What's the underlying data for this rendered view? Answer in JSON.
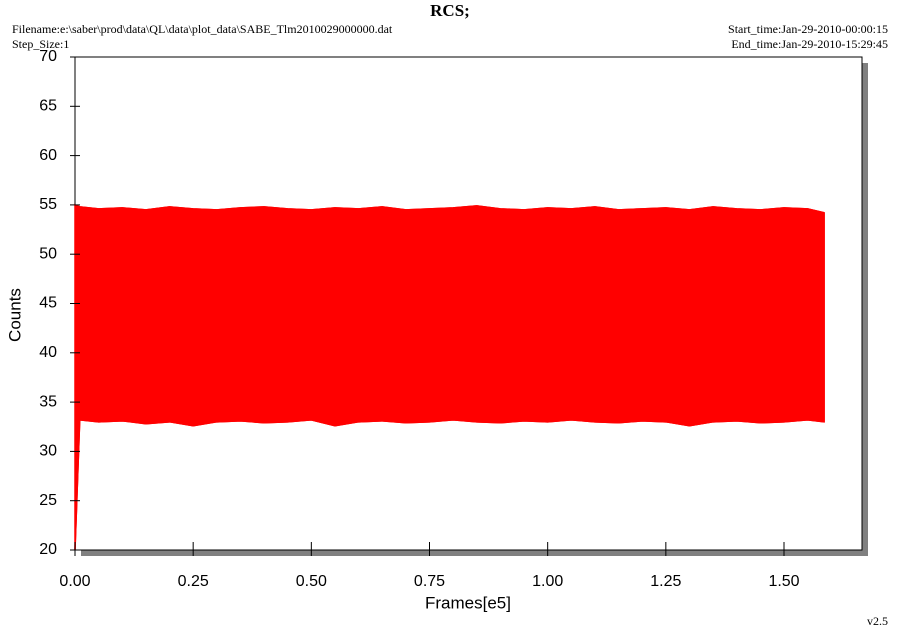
{
  "chart_data": {
    "type": "range-area",
    "title": "RCS;",
    "filename": "Filename:e:\\saber\\prod\\data\\QL\\data\\plot_data\\SABE_Tlm2010029000000.dat",
    "step_size": "Step_Size:1",
    "start_time": "Start_time:Jan-29-2010-00:00:15",
    "end_time": "End_time:Jan-29-2010-15:29:45",
    "version": "v2.5",
    "x_label": "Frames[e5]",
    "y_label": "Counts",
    "color": "#ff0000",
    "x": [
      0,
      0.01,
      0.05,
      0.1,
      0.15,
      0.2,
      0.25,
      0.3,
      0.35,
      0.4,
      0.45,
      0.5,
      0.55,
      0.6,
      0.65,
      0.7,
      0.75,
      0.8,
      0.85,
      0.9,
      0.95,
      1.0,
      1.05,
      1.1,
      1.15,
      1.2,
      1.25,
      1.3,
      1.35,
      1.4,
      1.45,
      1.5,
      1.55,
      1.585
    ],
    "upper": [
      55,
      54.8,
      54.6,
      54.7,
      54.5,
      54.8,
      54.6,
      54.5,
      54.7,
      54.8,
      54.6,
      54.5,
      54.7,
      54.6,
      54.8,
      54.5,
      54.6,
      54.7,
      54.9,
      54.6,
      54.5,
      54.7,
      54.6,
      54.8,
      54.5,
      54.6,
      54.7,
      54.5,
      54.8,
      54.6,
      54.5,
      54.7,
      54.6,
      54.2
    ],
    "lower": [
      20,
      33.2,
      33,
      33.1,
      32.8,
      33,
      32.6,
      33,
      33.1,
      32.9,
      33,
      33.2,
      32.6,
      33,
      33.1,
      32.9,
      33,
      33.2,
      33,
      32.9,
      33.1,
      33,
      33.2,
      33,
      32.9,
      33.1,
      33,
      32.6,
      33,
      33.1,
      32.9,
      33,
      33.2,
      33
    ],
    "xlim": [
      0,
      1.665
    ],
    "ylim": [
      20,
      70
    ],
    "xticks": [
      {
        "value": 0,
        "label": "0.00"
      },
      0.25,
      {
        "value": 0.5,
        "label": "0.50"
      },
      0.75,
      {
        "value": 1,
        "label": "1.00"
      },
      1.25,
      {
        "value": 1.5,
        "label": "1.50"
      }
    ],
    "yticks": [
      20,
      25,
      30,
      35,
      40,
      45,
      50,
      55,
      60,
      65,
      70
    ]
  }
}
